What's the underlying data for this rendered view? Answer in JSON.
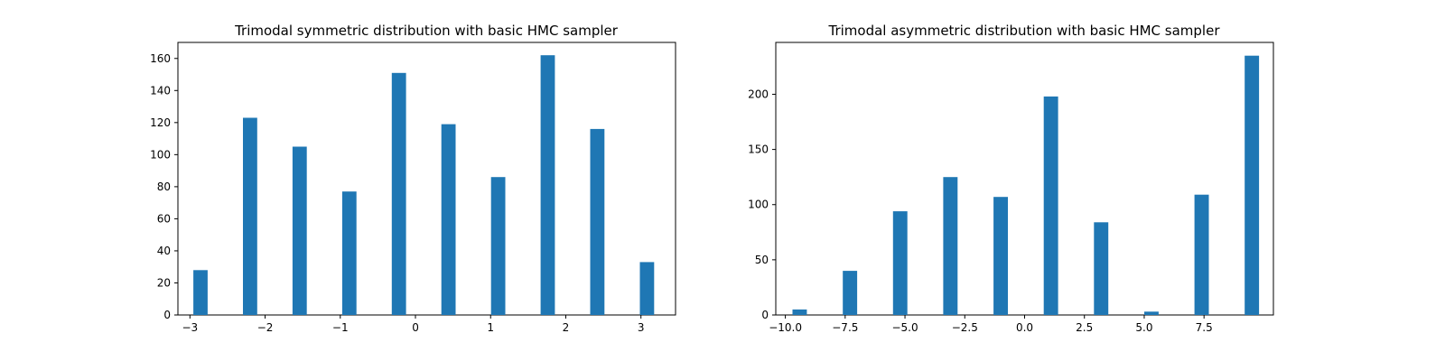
{
  "chart_data": [
    {
      "type": "bar",
      "title": "Trimodal symmetric distribution with basic HMC sampler",
      "xlabel": "",
      "ylabel": "",
      "xlim": [
        -3.16,
        3.46
      ],
      "ylim": [
        0,
        170
      ],
      "bar_width": 0.19,
      "x": [
        -2.86,
        -2.2,
        -1.54,
        -0.88,
        -0.22,
        0.44,
        1.1,
        1.76,
        2.42,
        3.08
      ],
      "values": [
        28,
        123,
        105,
        77,
        151,
        119,
        86,
        162,
        116,
        33
      ],
      "x_ticks": [
        -3,
        -2,
        -1,
        0,
        1,
        2,
        3
      ],
      "x_tick_labels": [
        "−3",
        "−2",
        "−1",
        "0",
        "1",
        "2",
        "3"
      ],
      "y_ticks": [
        0,
        20,
        40,
        60,
        80,
        100,
        120,
        140,
        160
      ],
      "y_tick_labels": [
        "0",
        "20",
        "40",
        "60",
        "80",
        "100",
        "120",
        "140",
        "160"
      ],
      "bar_color": "#1f77b4",
      "grid": false,
      "legend": "none"
    },
    {
      "type": "bar",
      "title": "Trimodal asymmetric distribution with basic HMC sampler",
      "xlabel": "",
      "ylabel": "",
      "xlim": [
        -10.4,
        10.4
      ],
      "ylim": [
        0,
        247
      ],
      "bar_width": 0.6,
      "x": [
        -9.4,
        -7.3,
        -5.2,
        -3.1,
        -1.0,
        1.1,
        3.2,
        5.3,
        7.4,
        9.5
      ],
      "values": [
        5,
        40,
        94,
        125,
        107,
        198,
        84,
        3,
        109,
        235
      ],
      "x_ticks": [
        -10,
        -7.5,
        -5,
        -2.5,
        0,
        2.5,
        5,
        7.5
      ],
      "x_tick_labels": [
        "−10.0",
        "−7.5",
        "−5.0",
        "−2.5",
        "0.0",
        "2.5",
        "5.0",
        "7.5"
      ],
      "y_ticks": [
        0,
        50,
        100,
        150,
        200
      ],
      "y_tick_labels": [
        "0",
        "50",
        "100",
        "150",
        "200"
      ],
      "bar_color": "#1f77b4",
      "grid": false,
      "legend": "none"
    }
  ]
}
